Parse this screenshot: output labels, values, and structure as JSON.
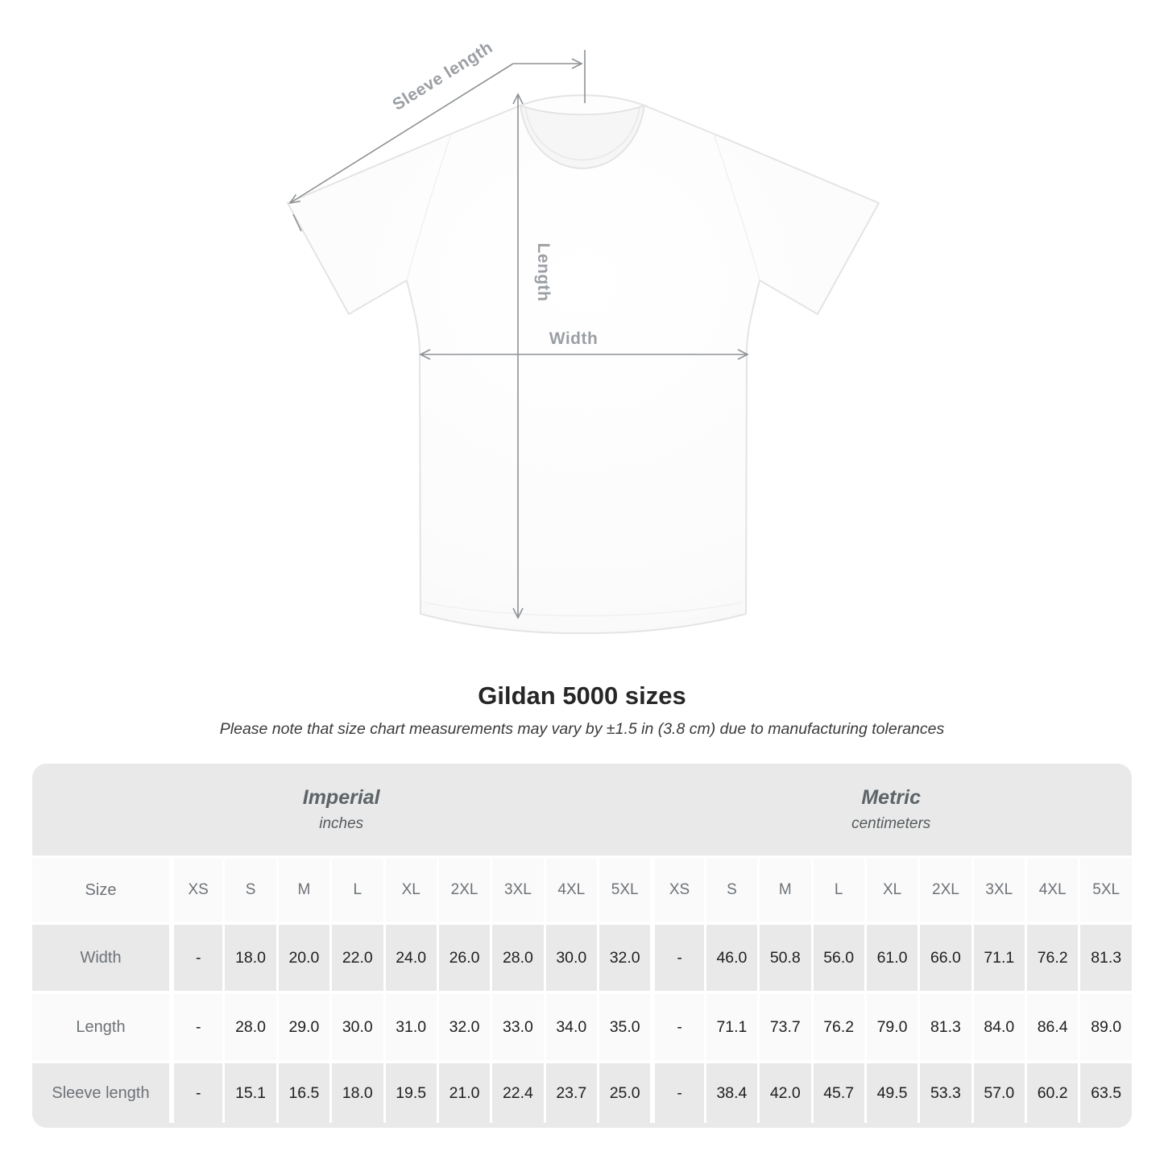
{
  "diagram": {
    "labels": {
      "sleeve_length": "Sleeve length",
      "length": "Length",
      "width": "Width"
    },
    "colors": {
      "annotation_line": "#8e9295",
      "annotation_text": "#9b9fa3",
      "shirt_outline": "#e4e4e4"
    }
  },
  "heading": {
    "title": "Gildan 5000 sizes",
    "subtitle": "Please note that size chart measurements may vary by ±1.5 in (3.8 cm) due to manufacturing tolerances"
  },
  "size_chart": {
    "colors": {
      "band_gray": "#e9e9e9",
      "row_light": "#fafafa",
      "header_text": "#6d7277",
      "data_text": "#1f1f1f"
    },
    "groups": [
      {
        "name": "Imperial",
        "unit": "inches"
      },
      {
        "name": "Metric",
        "unit": "centimeters"
      }
    ],
    "size_header_label": "Size",
    "sizes": [
      "XS",
      "S",
      "M",
      "L",
      "XL",
      "2XL",
      "3XL",
      "4XL",
      "5XL"
    ],
    "rows": [
      {
        "label": "Width",
        "imperial": [
          "-",
          "18.0",
          "20.0",
          "22.0",
          "24.0",
          "26.0",
          "28.0",
          "30.0",
          "32.0"
        ],
        "metric": [
          "-",
          "46.0",
          "50.8",
          "56.0",
          "61.0",
          "66.0",
          "71.1",
          "76.2",
          "81.3"
        ]
      },
      {
        "label": "Length",
        "imperial": [
          "-",
          "28.0",
          "29.0",
          "30.0",
          "31.0",
          "32.0",
          "33.0",
          "34.0",
          "35.0"
        ],
        "metric": [
          "-",
          "71.1",
          "73.7",
          "76.2",
          "79.0",
          "81.3",
          "84.0",
          "86.4",
          "89.0"
        ]
      },
      {
        "label": "Sleeve length",
        "imperial": [
          "-",
          "15.1",
          "16.5",
          "18.0",
          "19.5",
          "21.0",
          "22.4",
          "23.7",
          "25.0"
        ],
        "metric": [
          "-",
          "38.4",
          "42.0",
          "45.7",
          "49.5",
          "53.3",
          "57.0",
          "60.2",
          "63.5"
        ]
      }
    ]
  }
}
